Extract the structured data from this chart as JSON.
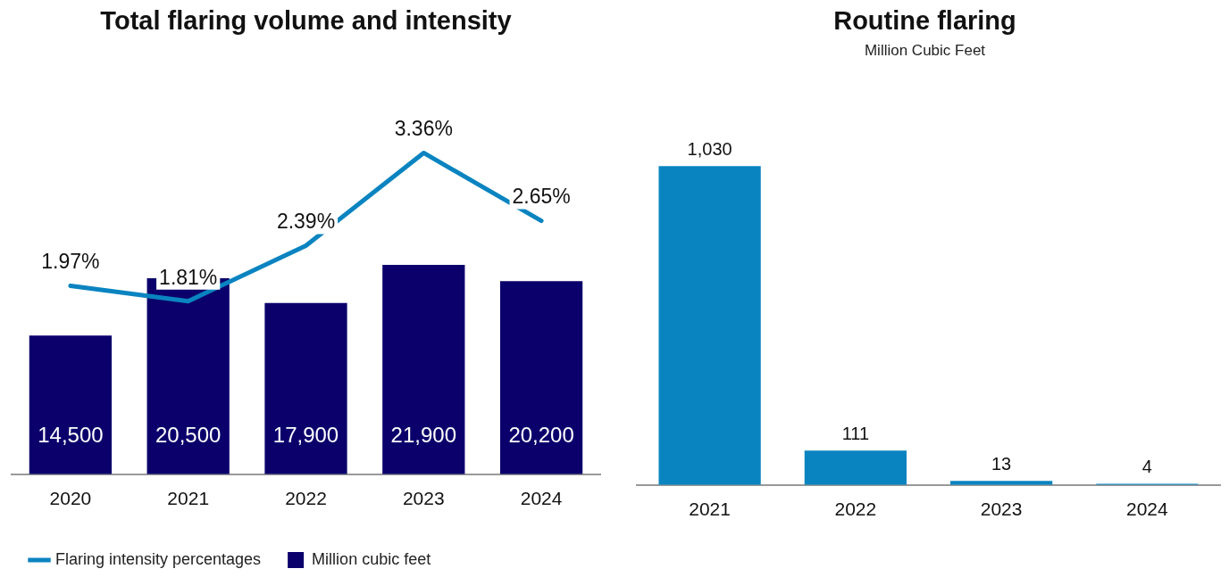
{
  "chart_data": [
    {
      "type": "bar",
      "title": "Total flaring volume and intensity",
      "categories": [
        "2020",
        "2021",
        "2022",
        "2023",
        "2024"
      ],
      "series": [
        {
          "name": "Flaring intensity percentages",
          "type": "line",
          "axis": "y2",
          "color": "#0a84c0",
          "values": [
            1.97,
            1.81,
            2.39,
            3.36,
            2.65
          ],
          "value_labels": [
            "1.97%",
            "1.81%",
            "2.39%",
            "3.36%",
            "2.65%"
          ]
        },
        {
          "name": "Million cubic feet",
          "type": "bar",
          "color": "#0b006b",
          "values": [
            14500,
            20500,
            17900,
            21900,
            20200
          ],
          "value_labels": [
            "14,500",
            "20,500",
            "17,900",
            "21,900",
            "20,200"
          ]
        }
      ],
      "legend": "bottom left",
      "grid": false,
      "tick_labels": "x",
      "marker": "none",
      "line_style": "solid"
    },
    {
      "type": "bar",
      "title": "Routine flaring",
      "subtitle": "Million Cubic Feet",
      "categories": [
        "2021",
        "2022",
        "2023",
        "2024"
      ],
      "values": [
        1030,
        111,
        13,
        4
      ],
      "color": "#0a84c0",
      "value_labels": [
        "1,030",
        "111",
        "13",
        "4"
      ],
      "grid": false,
      "tick_labels": "x"
    }
  ]
}
